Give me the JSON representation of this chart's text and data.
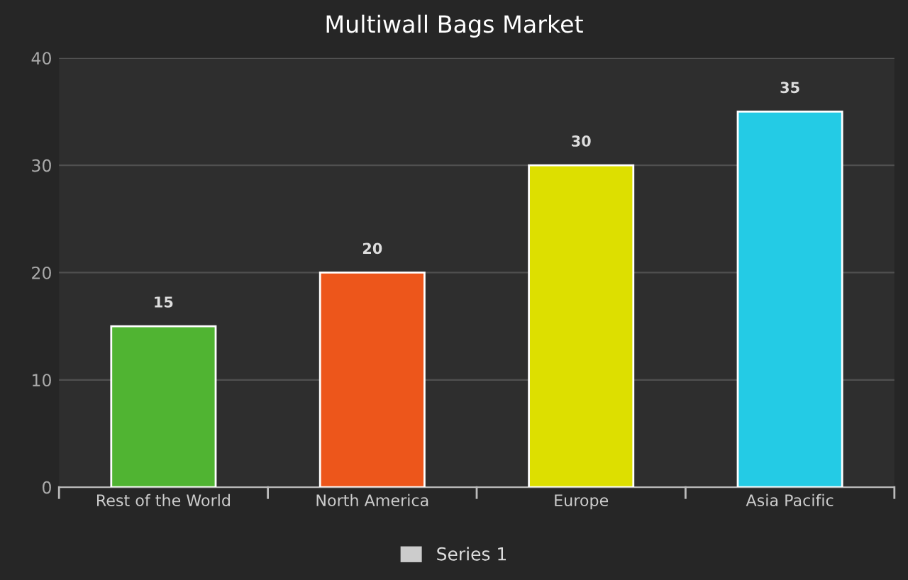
{
  "chart_data": {
    "type": "bar",
    "title": "Multiwall Bags Market",
    "categories": [
      "Rest of the World",
      "North America",
      "Europe",
      "Asia Pacific"
    ],
    "series": [
      {
        "name": "Series 1",
        "color": "#cccccc",
        "colors": [
          "#50b432",
          "#ed561b",
          "#dddf00",
          "#24cbe5"
        ],
        "values": [
          15,
          20,
          30,
          35
        ]
      }
    ],
    "ylim": [
      0,
      40
    ],
    "yticks": [
      0,
      10,
      20,
      30,
      40
    ],
    "grid": "y",
    "data_labels": true,
    "legend": "bottom"
  }
}
